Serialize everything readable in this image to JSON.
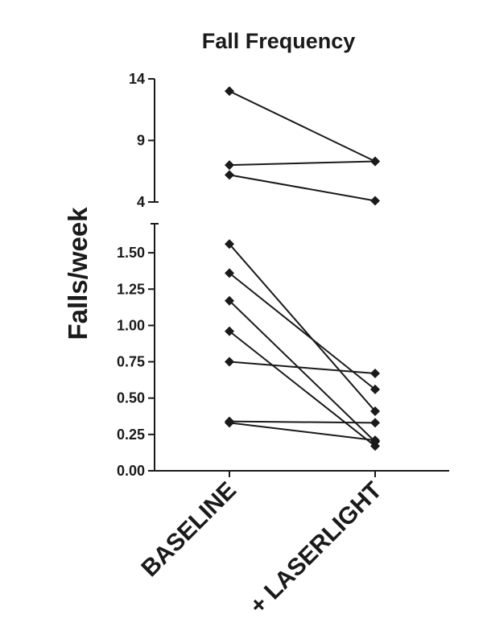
{
  "chart_data": {
    "type": "line",
    "title": "Fall Frequency",
    "xlabel": "",
    "ylabel": "Falls/week",
    "categories": [
      "BASELINE",
      "+ LASERLIGHT"
    ],
    "y_axis_broken": true,
    "upper_segment": {
      "ylim": [
        4,
        14
      ],
      "ticks": [
        "14",
        "9",
        "4"
      ],
      "tick_values": [
        14,
        9,
        4
      ]
    },
    "lower_segment": {
      "ylim": [
        0,
        1.7
      ],
      "ticks": [
        "1.50",
        "1.25",
        "1.00",
        "0.75",
        "0.50",
        "0.25",
        "0.00"
      ],
      "tick_values": [
        1.5,
        1.25,
        1.0,
        0.75,
        0.5,
        0.25,
        0.0
      ]
    },
    "series": [
      {
        "values": [
          13.0,
          7.3
        ]
      },
      {
        "values": [
          7.0,
          7.3
        ]
      },
      {
        "values": [
          6.2,
          4.1
        ]
      },
      {
        "values": [
          1.56,
          0.41
        ]
      },
      {
        "values": [
          1.36,
          0.56
        ]
      },
      {
        "values": [
          1.17,
          0.2
        ]
      },
      {
        "values": [
          0.96,
          0.17
        ]
      },
      {
        "values": [
          0.75,
          0.67
        ]
      },
      {
        "values": [
          0.34,
          0.33
        ]
      },
      {
        "values": [
          0.33,
          0.21
        ]
      }
    ],
    "grid": false,
    "marker": "diamond",
    "color": "#1a1a1a"
  }
}
